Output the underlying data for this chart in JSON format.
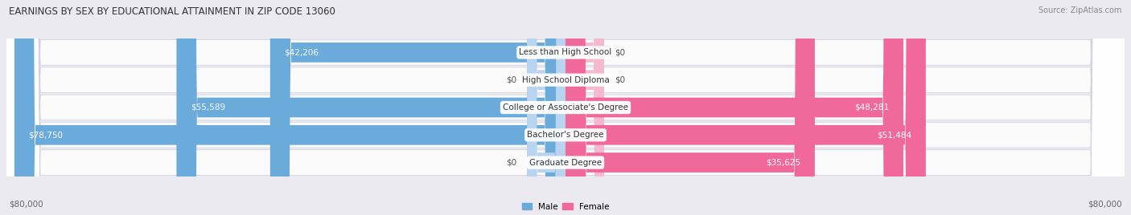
{
  "title": "EARNINGS BY SEX BY EDUCATIONAL ATTAINMENT IN ZIP CODE 13060",
  "source": "Source: ZipAtlas.com",
  "categories": [
    "Less than High School",
    "High School Diploma",
    "College or Associate's Degree",
    "Bachelor's Degree",
    "Graduate Degree"
  ],
  "male_values": [
    42206,
    0,
    55589,
    78750,
    0
  ],
  "female_values": [
    0,
    0,
    48281,
    51484,
    35625
  ],
  "male_labels": [
    "$42,206",
    "$0",
    "$55,589",
    "$78,750",
    "$0"
  ],
  "female_labels": [
    "$0",
    "$0",
    "$48,281",
    "$51,484",
    "$35,625"
  ],
  "male_color": "#6aabdc",
  "female_color": "#f0699a",
  "male_color_light": "#b8d4ee",
  "female_color_light": "#f5b8cc",
  "max_value": 80000,
  "x_tick_left": "$80,000",
  "x_tick_right": "$80,000",
  "background_color": "#eaeaf0",
  "row_bg_color": "#f5f5f8",
  "title_fontsize": 8.5,
  "source_fontsize": 7,
  "label_fontsize": 7.5,
  "tick_fontsize": 7.5,
  "stub_value": 5500,
  "cat_label_fontsize": 7.5
}
